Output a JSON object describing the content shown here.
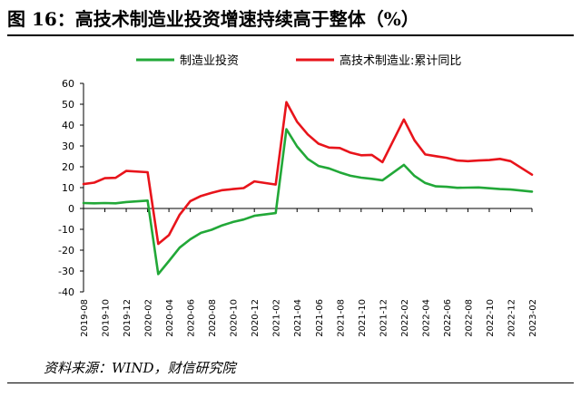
{
  "title": "图 16：高技术制造业投资增速持续高于整体（%）",
  "source": "资料来源：WIND，财信研究院",
  "chart_data": {
    "type": "line",
    "ylim": [
      -40,
      60
    ],
    "yticks": [
      "60",
      "50",
      "40",
      "30",
      "20",
      "10",
      "0",
      "-10",
      "-20",
      "-30",
      "-40"
    ],
    "xtick_labels": [
      "2019-08",
      "2019-10",
      "2019-12",
      "2020-02",
      "2020-04",
      "2020-06",
      "2020-08",
      "2020-10",
      "2020-12",
      "2021-02",
      "2021-04",
      "2021-06",
      "2021-08",
      "2021-10",
      "2021-12",
      "2022-02",
      "2022-04",
      "2022-06",
      "2022-08",
      "2022-10",
      "2022-12",
      "2023-02"
    ],
    "legend_position": "top",
    "grid": false,
    "series": [
      {
        "name": "制造业投资",
        "color": "#22a838",
        "x": [
          "2019-08",
          "2019-09",
          "2019-10",
          "2019-11",
          "2019-12",
          "2020-02",
          "2020-03",
          "2020-04",
          "2020-05",
          "2020-06",
          "2020-07",
          "2020-08",
          "2020-09",
          "2020-10",
          "2020-11",
          "2020-12",
          "2021-02",
          "2021-03",
          "2021-04",
          "2021-05",
          "2021-06",
          "2021-07",
          "2021-08",
          "2021-09",
          "2021-10",
          "2021-11",
          "2021-12",
          "2022-02",
          "2022-03",
          "2022-04",
          "2022-05",
          "2022-06",
          "2022-07",
          "2022-08",
          "2022-09",
          "2022-10",
          "2022-11",
          "2022-12",
          "2023-02"
        ],
        "values": [
          2.6,
          2.5,
          2.6,
          2.5,
          3.1,
          3.8,
          -31.5,
          -25.2,
          -18.8,
          -14.8,
          -11.7,
          -10.2,
          -8.1,
          -6.5,
          -5.3,
          -3.5,
          -2.2,
          38.0,
          29.8,
          23.8,
          20.4,
          19.2,
          17.3,
          15.7,
          14.8,
          14.2,
          13.5,
          20.9,
          15.6,
          12.2,
          10.6,
          10.4,
          9.9,
          10.0,
          10.1,
          9.7,
          9.3,
          9.1,
          8.1
        ]
      },
      {
        "name": "高技术制造业:累计同比",
        "color": "#e8141b",
        "x": [
          "2019-08",
          "2019-09",
          "2019-10",
          "2019-11",
          "2019-12",
          "2020-02",
          "2020-03",
          "2020-04",
          "2020-05",
          "2020-06",
          "2020-07",
          "2020-08",
          "2020-09",
          "2020-10",
          "2020-11",
          "2020-12",
          "2021-02",
          "2021-03",
          "2021-04",
          "2021-05",
          "2021-06",
          "2021-07",
          "2021-08",
          "2021-09",
          "2021-10",
          "2021-11",
          "2021-12",
          "2022-02",
          "2022-03",
          "2022-04",
          "2022-05",
          "2022-06",
          "2022-07",
          "2022-08",
          "2022-09",
          "2022-10",
          "2022-11",
          "2022-12",
          "2023-02"
        ],
        "values": [
          11.7,
          12.4,
          14.5,
          14.7,
          18.0,
          17.4,
          -17.0,
          -12.8,
          -3.0,
          3.5,
          6.0,
          7.5,
          8.8,
          9.3,
          9.8,
          13.0,
          11.5,
          51.0,
          41.6,
          35.5,
          31.1,
          29.2,
          29.0,
          26.8,
          25.5,
          25.7,
          22.2,
          42.7,
          32.7,
          25.9,
          25.1,
          24.3,
          23.0,
          22.7,
          23.0,
          23.2,
          23.8,
          22.7,
          16.2
        ]
      }
    ]
  }
}
